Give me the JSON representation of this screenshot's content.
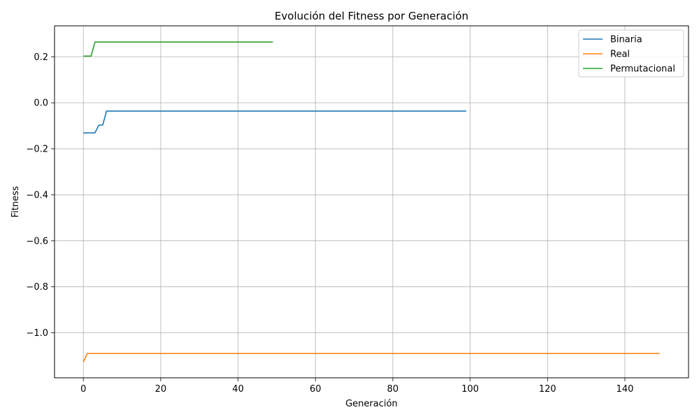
{
  "chart_data": {
    "type": "line",
    "title": "Evolución del Fitness por Generación",
    "xlabel": "Generación",
    "ylabel": "Fitness",
    "xlim": [
      -7.45,
      156.45
    ],
    "ylim": [
      -1.1955,
      0.3344
    ],
    "xticks": [
      0,
      20,
      40,
      60,
      80,
      100,
      120,
      140
    ],
    "yticks": [
      -1.0,
      -0.8,
      -0.6,
      -0.4,
      -0.2,
      0.0,
      0.2
    ],
    "ytick_labels": [
      "−1.0",
      "−0.8",
      "−0.6",
      "−0.4",
      "−0.2",
      "0.0",
      "0.2"
    ],
    "grid": true,
    "legend_position": "top-right",
    "series": [
      {
        "name": "Binaria",
        "color": "#1f77b4",
        "points": [
          [
            0,
            -0.131
          ],
          [
            3,
            -0.131
          ],
          [
            4,
            -0.097
          ],
          [
            5,
            -0.097
          ],
          [
            6,
            -0.036
          ],
          [
            99,
            -0.036
          ]
        ]
      },
      {
        "name": "Real",
        "color": "#ff7f0e",
        "points": [
          [
            0,
            -1.127
          ],
          [
            1,
            -1.09
          ],
          [
            149,
            -1.09
          ]
        ]
      },
      {
        "name": "Permutacional",
        "color": "#2ca02c",
        "points": [
          [
            0,
            0.203
          ],
          [
            2,
            0.203
          ],
          [
            3,
            0.264
          ],
          [
            49,
            0.264
          ]
        ]
      }
    ]
  }
}
